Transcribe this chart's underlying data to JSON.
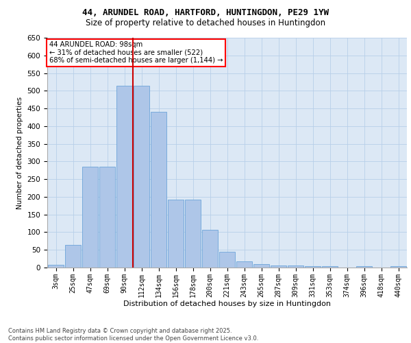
{
  "title_line1": "44, ARUNDEL ROAD, HARTFORD, HUNTINGDON, PE29 1YW",
  "title_line2": "Size of property relative to detached houses in Huntingdon",
  "xlabel": "Distribution of detached houses by size in Huntingdon",
  "ylabel": "Number of detached properties",
  "annotation_title": "44 ARUNDEL ROAD: 98sqm",
  "annotation_line2": "← 31% of detached houses are smaller (522)",
  "annotation_line3": "68% of semi-detached houses are larger (1,144) →",
  "footer_line1": "Contains HM Land Registry data © Crown copyright and database right 2025.",
  "footer_line2": "Contains public sector information licensed under the Open Government Licence v3.0.",
  "bins": [
    "3sqm",
    "25sqm",
    "47sqm",
    "69sqm",
    "90sqm",
    "112sqm",
    "134sqm",
    "156sqm",
    "178sqm",
    "200sqm",
    "221sqm",
    "243sqm",
    "265sqm",
    "287sqm",
    "309sqm",
    "331sqm",
    "353sqm",
    "374sqm",
    "396sqm",
    "418sqm",
    "440sqm"
  ],
  "bar_values": [
    8,
    65,
    285,
    285,
    515,
    515,
    440,
    193,
    193,
    107,
    45,
    17,
    10,
    5,
    5,
    4,
    4,
    0,
    4,
    0,
    4
  ],
  "bar_color": "#aec6e8",
  "bar_edge_color": "#5b9bd5",
  "vline_color": "#cc0000",
  "vline_x": 4.5,
  "grid_color": "#b8cfe8",
  "plot_bg_color": "#dce8f5",
  "ylim": [
    0,
    650
  ],
  "yticks": [
    0,
    50,
    100,
    150,
    200,
    250,
    300,
    350,
    400,
    450,
    500,
    550,
    600,
    650
  ]
}
